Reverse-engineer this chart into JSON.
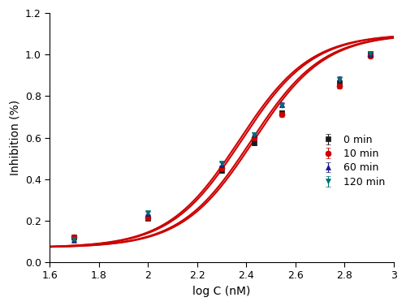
{
  "title": "",
  "xlabel": "log C (nM)",
  "ylabel": "Inhibition (%)",
  "xlim": [
    1.6,
    3.0
  ],
  "ylim": [
    0.0,
    1.2
  ],
  "xticks": [
    1.6,
    1.8,
    2.0,
    2.2,
    2.4,
    2.6,
    2.8,
    3.0
  ],
  "yticks": [
    0.0,
    0.2,
    0.4,
    0.6,
    0.8,
    1.0,
    1.2
  ],
  "series": [
    {
      "label": "0 min",
      "color": "#1a1a1a",
      "marker": "s",
      "x": [
        1.699,
        2.0,
        2.301,
        2.431,
        2.544,
        2.778,
        2.903
      ],
      "y": [
        0.12,
        0.21,
        0.44,
        0.575,
        0.72,
        0.865,
        1.005
      ],
      "yerr": [
        0.005,
        0.008,
        0.01,
        0.012,
        0.01,
        0.012,
        0.01
      ],
      "curve_ec50": 2.42,
      "curve_hill": 3.0,
      "curve_top": 1.1,
      "curve_bottom": 0.07
    },
    {
      "label": "10 min",
      "color": "#cc0000",
      "marker": "o",
      "x": [
        1.699,
        2.0,
        2.301,
        2.431,
        2.544,
        2.778,
        2.903
      ],
      "y": [
        0.12,
        0.215,
        0.455,
        0.6,
        0.71,
        0.85,
        0.995
      ],
      "yerr": [
        0.005,
        0.008,
        0.01,
        0.012,
        0.01,
        0.012,
        0.01
      ],
      "curve_ec50": 2.43,
      "curve_hill": 3.0,
      "curve_top": 1.1,
      "curve_bottom": 0.07
    },
    {
      "label": "60 min",
      "color": "#1a1a8c",
      "marker": "^",
      "x": [
        1.699,
        2.0,
        2.301,
        2.431,
        2.544,
        2.778,
        2.903
      ],
      "y": [
        0.105,
        0.235,
        0.47,
        0.615,
        0.76,
        0.885,
        1.0
      ],
      "yerr": [
        0.005,
        0.008,
        0.01,
        0.012,
        0.01,
        0.012,
        0.01
      ],
      "curve_ec50": 2.38,
      "curve_hill": 3.0,
      "curve_top": 1.1,
      "curve_bottom": 0.07
    },
    {
      "label": "120 min",
      "color": "#007070",
      "marker": "v",
      "x": [
        1.699,
        2.0,
        2.301,
        2.431,
        2.544,
        2.778,
        2.903
      ],
      "y": [
        0.11,
        0.24,
        0.475,
        0.615,
        0.755,
        0.88,
        1.005
      ],
      "yerr": [
        0.005,
        0.008,
        0.01,
        0.012,
        0.01,
        0.012,
        0.01
      ],
      "curve_ec50": 2.37,
      "curve_hill": 3.0,
      "curve_top": 1.1,
      "curve_bottom": 0.07
    }
  ],
  "line_color": "#cc0000",
  "line_width": 1.5,
  "marker_size": 5,
  "background_color": "#ffffff"
}
